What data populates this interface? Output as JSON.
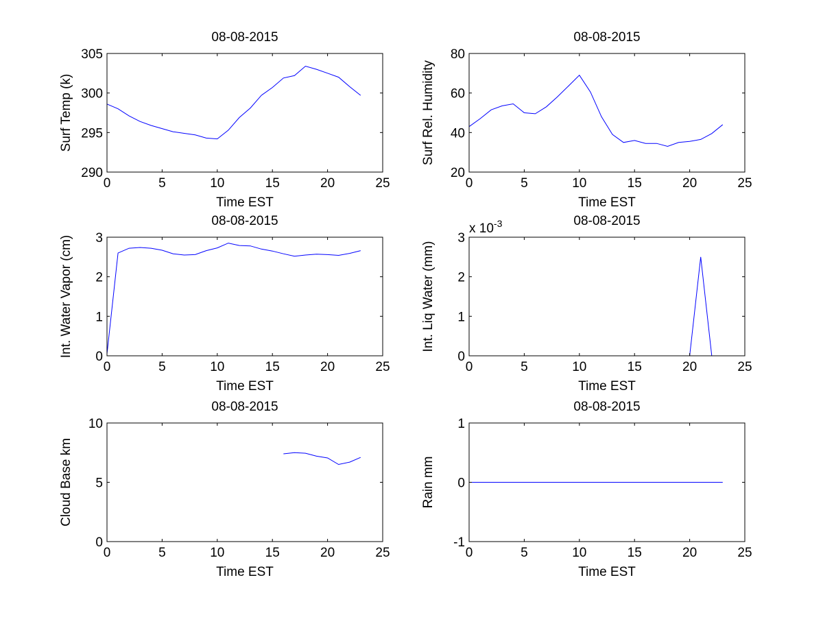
{
  "chart_data": [
    {
      "type": "line",
      "title": "08-08-2015",
      "xlabel": "Time EST",
      "ylabel": "Surf Temp (k)",
      "xlim": [
        0,
        25
      ],
      "ylim": [
        290,
        305
      ],
      "xticks": [
        0,
        5,
        10,
        15,
        20,
        25
      ],
      "yticks": [
        290,
        295,
        300,
        305
      ],
      "grid": false,
      "exponent": "",
      "series": [
        {
          "color": "#0000ff",
          "x": [
            0,
            1,
            2,
            3,
            4,
            5,
            6,
            7,
            8,
            9,
            10,
            11,
            12,
            13,
            14,
            15,
            16,
            17,
            18,
            19,
            20,
            21,
            22,
            23
          ],
          "y": [
            298.6,
            298.0,
            297.1,
            296.4,
            295.9,
            295.5,
            295.1,
            294.9,
            294.7,
            294.3,
            294.2,
            295.3,
            296.9,
            298.1,
            299.7,
            300.7,
            301.9,
            302.2,
            303.4,
            303.0,
            302.5,
            302.0,
            300.8,
            299.7
          ]
        }
      ]
    },
    {
      "type": "line",
      "title": "08-08-2015",
      "xlabel": "Time EST",
      "ylabel": "Surf Rel. Humidity",
      "xlim": [
        0,
        25
      ],
      "ylim": [
        20,
        80
      ],
      "xticks": [
        0,
        5,
        10,
        15,
        20,
        25
      ],
      "yticks": [
        20,
        40,
        60,
        80
      ],
      "grid": false,
      "exponent": "",
      "series": [
        {
          "color": "#0000ff",
          "x": [
            0,
            1,
            2,
            3,
            4,
            5,
            6,
            7,
            8,
            9,
            10,
            11,
            12,
            13,
            14,
            15,
            16,
            17,
            18,
            19,
            20,
            21,
            22,
            23
          ],
          "y": [
            43.0,
            47.0,
            51.5,
            53.5,
            54.5,
            50.0,
            49.5,
            53.0,
            58.0,
            63.5,
            69.0,
            60.5,
            48.0,
            39.0,
            35.0,
            36.0,
            34.5,
            34.5,
            33.0,
            35.0,
            35.5,
            36.5,
            39.5,
            44.0
          ]
        }
      ]
    },
    {
      "type": "line",
      "title": "08-08-2015",
      "xlabel": "Time EST",
      "ylabel": "Int. Water Vapor (cm)",
      "xlim": [
        0,
        25
      ],
      "ylim": [
        0,
        3
      ],
      "xticks": [
        0,
        5,
        10,
        15,
        20,
        25
      ],
      "yticks": [
        0,
        1,
        2,
        3
      ],
      "grid": false,
      "exponent": "",
      "series": [
        {
          "color": "#0000ff",
          "x": [
            0,
            1,
            2,
            3,
            4,
            5,
            6,
            7,
            8,
            9,
            10,
            11,
            12,
            13,
            14,
            15,
            16,
            17,
            18,
            19,
            20,
            21,
            22,
            23
          ],
          "y": [
            0.05,
            2.6,
            2.72,
            2.74,
            2.72,
            2.67,
            2.58,
            2.55,
            2.56,
            2.66,
            2.73,
            2.85,
            2.79,
            2.78,
            2.7,
            2.65,
            2.58,
            2.52,
            2.55,
            2.57,
            2.56,
            2.54,
            2.59,
            2.66
          ]
        }
      ]
    },
    {
      "type": "line",
      "title": "08-08-2015",
      "xlabel": "Time EST",
      "ylabel": "Int. Liq Water (mm)",
      "xlim": [
        0,
        25
      ],
      "ylim": [
        0,
        3
      ],
      "xticks": [
        0,
        5,
        10,
        15,
        20,
        25
      ],
      "yticks": [
        0,
        1,
        2,
        3
      ],
      "grid": false,
      "exponent": "-3",
      "series": [
        {
          "color": "#0000ff",
          "x": [
            0,
            1,
            2,
            3,
            4,
            5,
            6,
            7,
            8,
            9,
            10,
            11,
            12,
            13,
            14,
            15,
            16,
            17,
            18,
            19,
            20,
            21,
            22,
            23
          ],
          "y": [
            0,
            0,
            0,
            0,
            0,
            0,
            0,
            0,
            0,
            0,
            0,
            0,
            0,
            0,
            0,
            0,
            0,
            0,
            0,
            0,
            0,
            2.5,
            0,
            0
          ]
        }
      ]
    },
    {
      "type": "line",
      "title": "08-08-2015",
      "xlabel": "Time EST",
      "ylabel": "Cloud Base km",
      "xlim": [
        0,
        25
      ],
      "ylim": [
        0,
        10
      ],
      "xticks": [
        0,
        5,
        10,
        15,
        20,
        25
      ],
      "yticks": [
        0,
        5,
        10
      ],
      "grid": false,
      "exponent": "",
      "series": [
        {
          "color": "#0000ff",
          "x": [
            16,
            17,
            18,
            19,
            20,
            21,
            22,
            23
          ],
          "y": [
            7.4,
            7.5,
            7.45,
            7.2,
            7.05,
            6.5,
            6.7,
            7.1
          ]
        }
      ]
    },
    {
      "type": "line",
      "title": "08-08-2015",
      "xlabel": "Time EST",
      "ylabel": "Rain mm",
      "xlim": [
        0,
        25
      ],
      "ylim": [
        -1,
        1
      ],
      "xticks": [
        0,
        5,
        10,
        15,
        20,
        25
      ],
      "yticks": [
        -1,
        0,
        1
      ],
      "grid": false,
      "exponent": "",
      "series": [
        {
          "color": "#0000ff",
          "x": [
            0,
            1,
            2,
            3,
            4,
            5,
            6,
            7,
            8,
            9,
            10,
            11,
            12,
            13,
            14,
            15,
            16,
            17,
            18,
            19,
            20,
            21,
            22,
            23
          ],
          "y": [
            0,
            0,
            0,
            0,
            0,
            0,
            0,
            0,
            0,
            0,
            0,
            0,
            0,
            0,
            0,
            0,
            0,
            0,
            0,
            0,
            0,
            0,
            0,
            0
          ]
        }
      ]
    }
  ]
}
